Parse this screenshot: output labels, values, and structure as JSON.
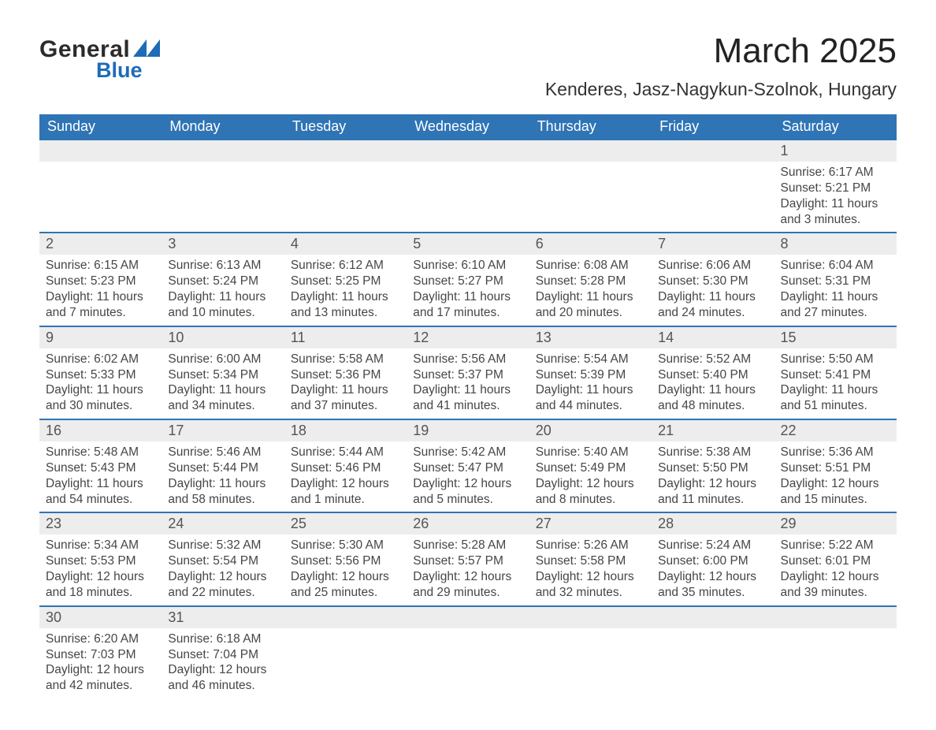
{
  "brand": {
    "word1": "General",
    "word2": "Blue"
  },
  "header": {
    "month_title": "March 2025",
    "location": "Kenderes, Jasz-Nagykun-Szolnok, Hungary"
  },
  "colors": {
    "header_bg": "#2f74b5",
    "header_text": "#ffffff",
    "row_border": "#2f74b5",
    "daynum_bg": "#ededed",
    "body_text": "#464646",
    "logo_blue": "#1e6bb8"
  },
  "typography": {
    "month_title_fontsize": 44,
    "location_fontsize": 23,
    "weekday_fontsize": 18,
    "daynum_fontsize": 18,
    "body_fontsize": 15.5
  },
  "calendar": {
    "type": "table",
    "weekdays": [
      "Sunday",
      "Monday",
      "Tuesday",
      "Wednesday",
      "Thursday",
      "Friday",
      "Saturday"
    ],
    "weeks": [
      [
        null,
        null,
        null,
        null,
        null,
        null,
        {
          "n": "1",
          "sunrise": "Sunrise: 6:17 AM",
          "sunset": "Sunset: 5:21 PM",
          "day1": "Daylight: 11 hours",
          "day2": "and 3 minutes."
        }
      ],
      [
        {
          "n": "2",
          "sunrise": "Sunrise: 6:15 AM",
          "sunset": "Sunset: 5:23 PM",
          "day1": "Daylight: 11 hours",
          "day2": "and 7 minutes."
        },
        {
          "n": "3",
          "sunrise": "Sunrise: 6:13 AM",
          "sunset": "Sunset: 5:24 PM",
          "day1": "Daylight: 11 hours",
          "day2": "and 10 minutes."
        },
        {
          "n": "4",
          "sunrise": "Sunrise: 6:12 AM",
          "sunset": "Sunset: 5:25 PM",
          "day1": "Daylight: 11 hours",
          "day2": "and 13 minutes."
        },
        {
          "n": "5",
          "sunrise": "Sunrise: 6:10 AM",
          "sunset": "Sunset: 5:27 PM",
          "day1": "Daylight: 11 hours",
          "day2": "and 17 minutes."
        },
        {
          "n": "6",
          "sunrise": "Sunrise: 6:08 AM",
          "sunset": "Sunset: 5:28 PM",
          "day1": "Daylight: 11 hours",
          "day2": "and 20 minutes."
        },
        {
          "n": "7",
          "sunrise": "Sunrise: 6:06 AM",
          "sunset": "Sunset: 5:30 PM",
          "day1": "Daylight: 11 hours",
          "day2": "and 24 minutes."
        },
        {
          "n": "8",
          "sunrise": "Sunrise: 6:04 AM",
          "sunset": "Sunset: 5:31 PM",
          "day1": "Daylight: 11 hours",
          "day2": "and 27 minutes."
        }
      ],
      [
        {
          "n": "9",
          "sunrise": "Sunrise: 6:02 AM",
          "sunset": "Sunset: 5:33 PM",
          "day1": "Daylight: 11 hours",
          "day2": "and 30 minutes."
        },
        {
          "n": "10",
          "sunrise": "Sunrise: 6:00 AM",
          "sunset": "Sunset: 5:34 PM",
          "day1": "Daylight: 11 hours",
          "day2": "and 34 minutes."
        },
        {
          "n": "11",
          "sunrise": "Sunrise: 5:58 AM",
          "sunset": "Sunset: 5:36 PM",
          "day1": "Daylight: 11 hours",
          "day2": "and 37 minutes."
        },
        {
          "n": "12",
          "sunrise": "Sunrise: 5:56 AM",
          "sunset": "Sunset: 5:37 PM",
          "day1": "Daylight: 11 hours",
          "day2": "and 41 minutes."
        },
        {
          "n": "13",
          "sunrise": "Sunrise: 5:54 AM",
          "sunset": "Sunset: 5:39 PM",
          "day1": "Daylight: 11 hours",
          "day2": "and 44 minutes."
        },
        {
          "n": "14",
          "sunrise": "Sunrise: 5:52 AM",
          "sunset": "Sunset: 5:40 PM",
          "day1": "Daylight: 11 hours",
          "day2": "and 48 minutes."
        },
        {
          "n": "15",
          "sunrise": "Sunrise: 5:50 AM",
          "sunset": "Sunset: 5:41 PM",
          "day1": "Daylight: 11 hours",
          "day2": "and 51 minutes."
        }
      ],
      [
        {
          "n": "16",
          "sunrise": "Sunrise: 5:48 AM",
          "sunset": "Sunset: 5:43 PM",
          "day1": "Daylight: 11 hours",
          "day2": "and 54 minutes."
        },
        {
          "n": "17",
          "sunrise": "Sunrise: 5:46 AM",
          "sunset": "Sunset: 5:44 PM",
          "day1": "Daylight: 11 hours",
          "day2": "and 58 minutes."
        },
        {
          "n": "18",
          "sunrise": "Sunrise: 5:44 AM",
          "sunset": "Sunset: 5:46 PM",
          "day1": "Daylight: 12 hours",
          "day2": "and 1 minute."
        },
        {
          "n": "19",
          "sunrise": "Sunrise: 5:42 AM",
          "sunset": "Sunset: 5:47 PM",
          "day1": "Daylight: 12 hours",
          "day2": "and 5 minutes."
        },
        {
          "n": "20",
          "sunrise": "Sunrise: 5:40 AM",
          "sunset": "Sunset: 5:49 PM",
          "day1": "Daylight: 12 hours",
          "day2": "and 8 minutes."
        },
        {
          "n": "21",
          "sunrise": "Sunrise: 5:38 AM",
          "sunset": "Sunset: 5:50 PM",
          "day1": "Daylight: 12 hours",
          "day2": "and 11 minutes."
        },
        {
          "n": "22",
          "sunrise": "Sunrise: 5:36 AM",
          "sunset": "Sunset: 5:51 PM",
          "day1": "Daylight: 12 hours",
          "day2": "and 15 minutes."
        }
      ],
      [
        {
          "n": "23",
          "sunrise": "Sunrise: 5:34 AM",
          "sunset": "Sunset: 5:53 PM",
          "day1": "Daylight: 12 hours",
          "day2": "and 18 minutes."
        },
        {
          "n": "24",
          "sunrise": "Sunrise: 5:32 AM",
          "sunset": "Sunset: 5:54 PM",
          "day1": "Daylight: 12 hours",
          "day2": "and 22 minutes."
        },
        {
          "n": "25",
          "sunrise": "Sunrise: 5:30 AM",
          "sunset": "Sunset: 5:56 PM",
          "day1": "Daylight: 12 hours",
          "day2": "and 25 minutes."
        },
        {
          "n": "26",
          "sunrise": "Sunrise: 5:28 AM",
          "sunset": "Sunset: 5:57 PM",
          "day1": "Daylight: 12 hours",
          "day2": "and 29 minutes."
        },
        {
          "n": "27",
          "sunrise": "Sunrise: 5:26 AM",
          "sunset": "Sunset: 5:58 PM",
          "day1": "Daylight: 12 hours",
          "day2": "and 32 minutes."
        },
        {
          "n": "28",
          "sunrise": "Sunrise: 5:24 AM",
          "sunset": "Sunset: 6:00 PM",
          "day1": "Daylight: 12 hours",
          "day2": "and 35 minutes."
        },
        {
          "n": "29",
          "sunrise": "Sunrise: 5:22 AM",
          "sunset": "Sunset: 6:01 PM",
          "day1": "Daylight: 12 hours",
          "day2": "and 39 minutes."
        }
      ],
      [
        {
          "n": "30",
          "sunrise": "Sunrise: 6:20 AM",
          "sunset": "Sunset: 7:03 PM",
          "day1": "Daylight: 12 hours",
          "day2": "and 42 minutes."
        },
        {
          "n": "31",
          "sunrise": "Sunrise: 6:18 AM",
          "sunset": "Sunset: 7:04 PM",
          "day1": "Daylight: 12 hours",
          "day2": "and 46 minutes."
        },
        null,
        null,
        null,
        null,
        null
      ]
    ]
  }
}
